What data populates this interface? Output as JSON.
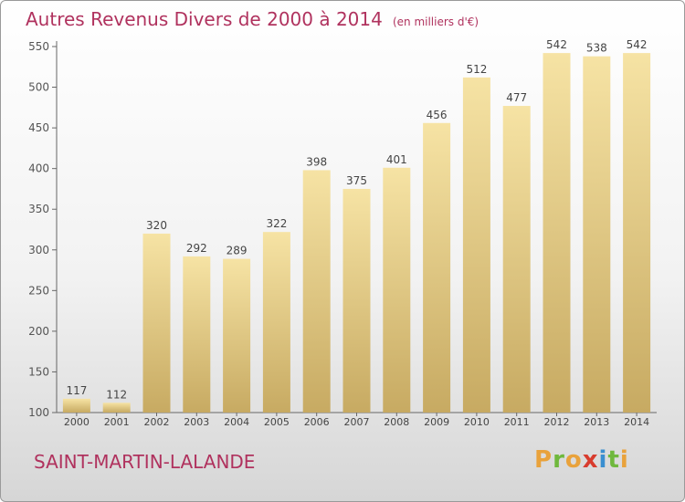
{
  "title": {
    "main": "Autres Revenus Divers de 2000 à 2014",
    "unit": "(en milliers d'€)"
  },
  "commune": "SAINT-MARTIN-LALANDE",
  "brand": {
    "letters": [
      "P",
      "r",
      "o",
      "x",
      "i",
      "t",
      "i"
    ],
    "colors": [
      "#e9a23b",
      "#6fb83d",
      "#e9a23b",
      "#d83c2e",
      "#3a8fd0",
      "#6fb83d",
      "#e9a23b"
    ]
  },
  "colors": {
    "title": "#b0325e",
    "bar_top": "#f6e3a4",
    "bar_bottom": "#c7aa62",
    "axis": "#666666",
    "grid": "#dddddd"
  },
  "chart_data": {
    "type": "bar",
    "categories": [
      "2000",
      "2001",
      "2002",
      "2003",
      "2004",
      "2005",
      "2006",
      "2007",
      "2008",
      "2009",
      "2010",
      "2011",
      "2012",
      "2013",
      "2014"
    ],
    "values": [
      117,
      112,
      320,
      292,
      289,
      322,
      398,
      375,
      401,
      456,
      512,
      477,
      542,
      538,
      542
    ],
    "yticks": [
      100,
      150,
      200,
      250,
      300,
      350,
      400,
      450,
      500,
      550
    ],
    "ylim": [
      100,
      550
    ],
    "grid": false,
    "legend": "none"
  }
}
